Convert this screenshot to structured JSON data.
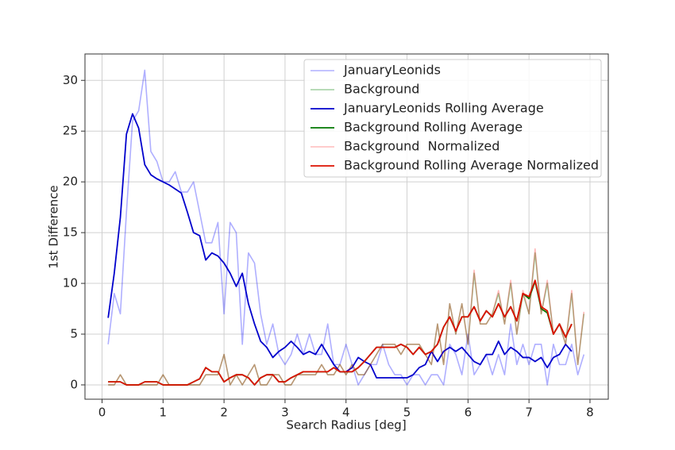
{
  "chart_data": {
    "type": "line",
    "xlabel": "Search Radius [deg]",
    "ylabel": "1st Difference",
    "x": [
      0.1,
      0.2,
      0.3,
      0.4,
      0.5,
      0.6,
      0.7,
      0.8,
      0.9,
      1.0,
      1.1,
      1.2,
      1.3,
      1.4,
      1.5,
      1.6,
      1.7,
      1.8,
      1.9,
      2.0,
      2.1,
      2.2,
      2.3,
      2.4,
      2.5,
      2.6,
      2.7,
      2.8,
      2.9,
      3.0,
      3.1,
      3.2,
      3.3,
      3.4,
      3.5,
      3.6,
      3.7,
      3.8,
      3.9,
      4.0,
      4.1,
      4.2,
      4.3,
      4.4,
      4.5,
      4.6,
      4.7,
      4.8,
      4.9,
      5.0,
      5.1,
      5.2,
      5.3,
      5.4,
      5.5,
      5.6,
      5.7,
      5.8,
      5.9,
      6.0,
      6.1,
      6.2,
      6.3,
      6.4,
      6.5,
      6.6,
      6.7,
      6.8,
      6.9,
      7.0,
      7.1,
      7.2,
      7.3,
      7.4,
      7.5,
      7.6,
      7.7,
      7.8,
      7.9
    ],
    "series": [
      {
        "name": "JanuaryLeonids",
        "color": "#0000ff50",
        "width": 1.6,
        "values": [
          4,
          9,
          7,
          17,
          26,
          27,
          31,
          23,
          22,
          20,
          20,
          21,
          19,
          19,
          20,
          17,
          14,
          14,
          16,
          7,
          16,
          15,
          4,
          13,
          12,
          7,
          4,
          6,
          3,
          2,
          3,
          5,
          3,
          5,
          3,
          3,
          6,
          2,
          2,
          4,
          2,
          0,
          1,
          2,
          2,
          4,
          2,
          1,
          1,
          0,
          1,
          1,
          0,
          1,
          1,
          0,
          4,
          3,
          1,
          5,
          1,
          2,
          3,
          1,
          3,
          1,
          6,
          2,
          4,
          2,
          4,
          4,
          0,
          4,
          2,
          2,
          4,
          1,
          3
        ]
      },
      {
        "name": "Background",
        "color": "#00800060",
        "width": 1.6,
        "values": [
          0,
          0,
          1,
          0,
          0,
          0,
          0,
          0,
          0,
          1,
          0,
          0,
          0,
          0,
          0,
          0,
          1,
          1,
          1,
          3,
          0,
          1,
          0,
          1,
          2,
          0,
          0,
          1,
          1,
          0,
          0,
          1,
          1,
          1,
          1,
          2,
          1,
          1,
          2,
          1,
          2,
          1,
          1,
          2,
          3,
          4,
          4,
          4,
          3,
          4,
          4,
          4,
          3,
          2,
          6,
          2,
          8,
          5,
          8,
          4,
          11,
          6,
          6,
          7,
          9,
          6,
          10,
          5,
          9,
          7,
          13,
          7,
          10,
          5,
          6,
          4,
          9,
          2,
          7
        ]
      },
      {
        "name": "JanuaryLeonids Rolling Average",
        "color": "#0000cc",
        "width": 1.8,
        "values": [
          6.6,
          11,
          16.5,
          24.7,
          26.7,
          25.3,
          21.7,
          20.7,
          20.3,
          20,
          19.7,
          19.3,
          18.9,
          17,
          15,
          14.7,
          12.3,
          13,
          12.7,
          12,
          11,
          9.7,
          11,
          8,
          6,
          4.3,
          3.7,
          2.7,
          3.3,
          3.7,
          4.3,
          3.7,
          3,
          3.3,
          3,
          4,
          3,
          2,
          1.3,
          1.3,
          1.7,
          2.7,
          2.3,
          2,
          0.7,
          0.7,
          0.7,
          0.7,
          0.7,
          0.7,
          1,
          1.7,
          2,
          3.3,
          2.3,
          3.3,
          3.7,
          3.3,
          3.7,
          3,
          2.3,
          2,
          3,
          3,
          4.3,
          3,
          3.7,
          3.3,
          2.7,
          2.7,
          2.3,
          2.7,
          1.7,
          2.7,
          3,
          4,
          3.3,
          null,
          null
        ]
      },
      {
        "name": "Background Rolling Average",
        "color": "#007700",
        "width": 1.8,
        "values": [
          0.3,
          0.3,
          0.3,
          0,
          0,
          0,
          0.3,
          0.3,
          0.3,
          0,
          0,
          0,
          0,
          0,
          0.3,
          0.6,
          1.7,
          1.3,
          1.3,
          0.3,
          0.7,
          1,
          1,
          0.7,
          0,
          0.7,
          1,
          1,
          0.3,
          0.3,
          0.7,
          1,
          1.3,
          1.3,
          1.3,
          1.3,
          1.3,
          1.7,
          1.3,
          1.3,
          1.3,
          1.7,
          2.3,
          3,
          3.7,
          3.7,
          3.7,
          3.7,
          4,
          3.7,
          3,
          3.7,
          3,
          3.3,
          4,
          5.7,
          6.7,
          5.3,
          6.7,
          6.7,
          7.7,
          6.3,
          7.3,
          6.7,
          8,
          6.7,
          7.7,
          6.3,
          9,
          8.5,
          10.2,
          7.5,
          7.1,
          5,
          6,
          4.7,
          6,
          null,
          null
        ]
      },
      {
        "name": "Background  Normalized",
        "color": "#ff000045",
        "width": 1.6,
        "values": [
          0,
          0,
          1,
          0,
          0,
          0,
          0,
          0,
          0,
          1,
          0,
          0,
          0,
          0,
          0,
          0,
          1,
          1,
          1,
          3,
          0,
          1,
          0,
          1,
          2,
          0,
          0,
          1,
          1,
          0,
          0,
          1,
          1,
          1,
          1,
          2,
          1,
          1,
          2,
          1,
          2,
          1,
          1,
          2,
          3,
          4,
          4,
          4,
          3,
          4,
          4,
          4,
          3,
          2,
          6,
          2,
          8,
          5,
          8,
          4,
          11.3,
          6,
          6,
          7,
          9.3,
          6,
          10.3,
          5,
          9.3,
          7,
          13.4,
          7,
          10.3,
          5,
          6,
          4,
          9.3,
          2,
          7.2
        ]
      },
      {
        "name": "Background Rolling Average Normalized",
        "color": "#dd1100",
        "width": 1.8,
        "values": [
          0.3,
          0.3,
          0.3,
          0,
          0,
          0,
          0.3,
          0.3,
          0.3,
          0,
          0,
          0,
          0,
          0,
          0.3,
          0.6,
          1.7,
          1.3,
          1.3,
          0.3,
          0.7,
          1,
          1,
          0.7,
          0,
          0.7,
          1,
          1,
          0.3,
          0.3,
          0.7,
          1,
          1.3,
          1.3,
          1.3,
          1.3,
          1.3,
          1.7,
          1.3,
          1.3,
          1.3,
          1.7,
          2.3,
          3,
          3.7,
          3.7,
          3.7,
          3.7,
          4,
          3.7,
          3,
          3.7,
          3,
          3.3,
          4,
          5.7,
          6.7,
          5.3,
          6.7,
          6.7,
          7.7,
          6.3,
          7.3,
          6.7,
          8,
          6.7,
          7.7,
          6.3,
          9,
          8.7,
          10.3,
          7.7,
          7.3,
          5,
          6,
          4.7,
          6,
          null,
          null
        ]
      }
    ],
    "xlim": [
      -0.28,
      8.3
    ],
    "xticks": [
      0,
      1,
      2,
      3,
      4,
      5,
      6,
      7,
      8
    ],
    "ylim": [
      -1.41,
      32.6
    ],
    "yticks": [
      0,
      5,
      10,
      15,
      20,
      25,
      30
    ],
    "grid": true,
    "legend": "upper right"
  }
}
